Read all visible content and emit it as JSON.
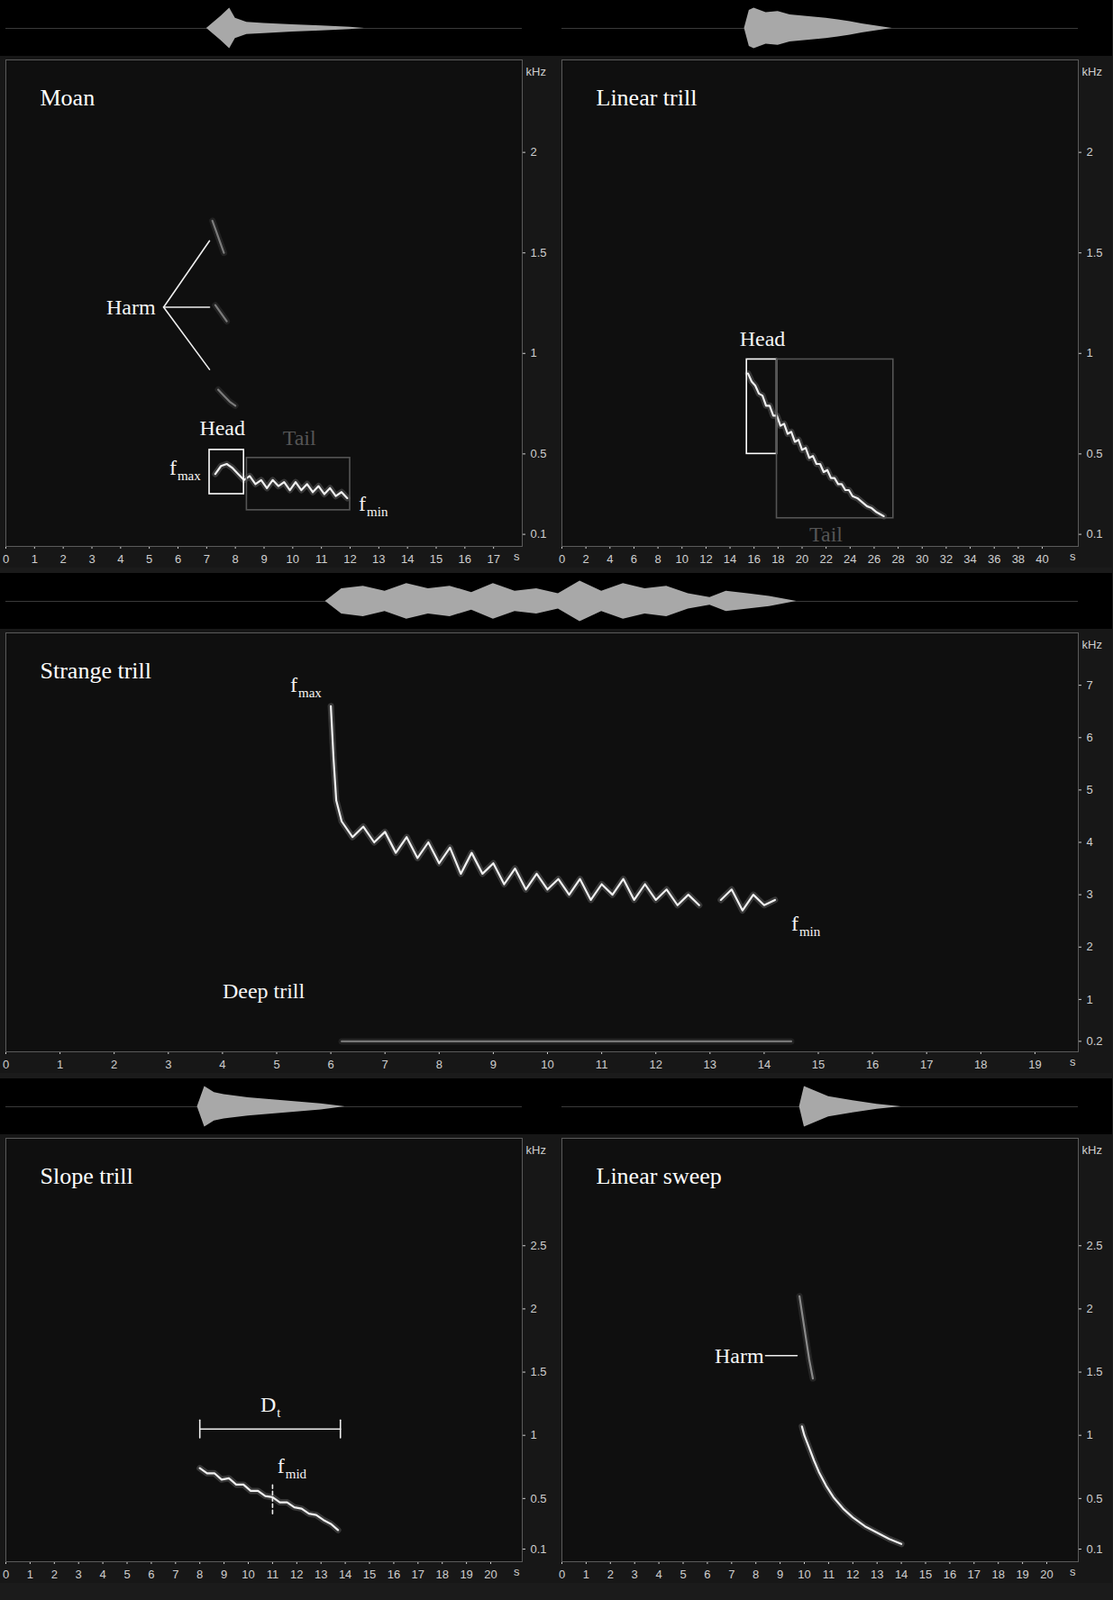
{
  "chart_data": [
    {
      "type": "line",
      "title": "Moan",
      "xlabel": "s",
      "ylabel": "kHz",
      "xlim": [
        0,
        18
      ],
      "xticks": [
        0,
        1,
        2,
        3,
        4,
        5,
        6,
        7,
        8,
        9,
        10,
        11,
        12,
        13,
        14,
        15,
        16,
        17
      ],
      "ylim": [
        0.04,
        2.46
      ],
      "yticks": [
        0.1,
        0.5,
        1,
        1.5,
        2
      ],
      "grid": false,
      "series": [
        {
          "color": "#f0f0f0",
          "x": [
            7.3,
            7.5,
            7.7,
            7.9,
            8.1,
            8.3,
            8.5,
            8.7,
            8.9,
            9.1,
            9.3,
            9.5,
            9.7,
            9.9,
            10.1,
            10.3,
            10.5,
            10.7,
            10.9,
            11.1,
            11.3,
            11.5,
            11.7,
            11.9
          ],
          "values": [
            0.4,
            0.44,
            0.45,
            0.43,
            0.4,
            0.37,
            0.39,
            0.35,
            0.37,
            0.33,
            0.37,
            0.34,
            0.36,
            0.32,
            0.36,
            0.32,
            0.35,
            0.31,
            0.34,
            0.3,
            0.33,
            0.29,
            0.31,
            0.28
          ]
        },
        {
          "color": "#7c7c7c",
          "x": [
            7.4,
            7.6,
            7.8,
            8.0
          ],
          "values": [
            0.82,
            0.79,
            0.76,
            0.74
          ]
        },
        {
          "color": "#7c7c7c",
          "x": [
            7.3,
            7.5,
            7.7
          ],
          "values": [
            1.24,
            1.2,
            1.16
          ]
        },
        {
          "color": "#7c7c7c",
          "x": [
            7.2,
            7.4,
            7.6
          ],
          "values": [
            1.66,
            1.58,
            1.5
          ]
        }
      ],
      "envelope": {
        "x": [
          7.0,
          7.5,
          7.8,
          8.0,
          8.4,
          9,
          10,
          11,
          12,
          12.5
        ],
        "values": [
          0,
          0.6,
          1.0,
          0.5,
          0.3,
          0.25,
          0.18,
          0.12,
          0.06,
          0
        ]
      },
      "boxes": [
        {
          "x": [
            7.1,
            8.3
          ],
          "y": [
            0.3,
            0.52
          ],
          "color": "#ffffff"
        },
        {
          "x": [
            8.4,
            12.0
          ],
          "y": [
            0.22,
            0.48
          ],
          "color": "#555555"
        }
      ],
      "leaders": [
        {
          "x": [
            5.5,
            7.1
          ],
          "y": [
            1.23,
            1.56
          ]
        },
        {
          "x": [
            5.5,
            7.1
          ],
          "y": [
            1.23,
            1.23
          ]
        },
        {
          "x": [
            5.5,
            7.1
          ],
          "y": [
            1.23,
            0.92
          ]
        }
      ],
      "annotations": [
        {
          "text": "Harm",
          "x": 3.5,
          "y": 1.23
        },
        {
          "text": "Head",
          "x": 6.75,
          "y": 0.63
        },
        {
          "text": "Tail",
          "x": 9.65,
          "y": 0.58,
          "color": "#555555"
        },
        {
          "text": "f",
          "sub": "max",
          "x": 5.7,
          "y": 0.43
        },
        {
          "text": "f",
          "sub": "min",
          "x": 12.3,
          "y": 0.25
        }
      ]
    },
    {
      "type": "line",
      "title": "Linear trill",
      "xlabel": "s",
      "ylabel": "kHz",
      "xlim": [
        0,
        43
      ],
      "xticks": [
        0,
        2,
        4,
        6,
        8,
        10,
        12,
        14,
        16,
        18,
        20,
        22,
        24,
        26,
        28,
        30,
        32,
        34,
        36,
        38,
        40
      ],
      "ylim": [
        0.04,
        2.46
      ],
      "yticks": [
        0.1,
        0.5,
        1,
        1.5,
        2
      ],
      "grid": false,
      "series": [
        {
          "color": "#f0f0f0",
          "x": [
            15.5,
            15.8,
            16.1,
            16.4,
            16.7,
            17.0,
            17.3,
            17.6,
            17.9,
            18.2,
            18.5,
            18.8,
            19.1,
            19.4,
            19.7,
            20.0,
            20.3,
            20.6,
            20.9,
            21.2,
            21.5,
            21.8,
            22.1,
            22.4,
            22.7,
            23.0,
            23.3,
            23.6,
            23.9,
            24.2,
            24.6,
            25.0,
            25.4,
            25.8,
            26.2,
            26.8
          ],
          "values": [
            0.9,
            0.86,
            0.84,
            0.8,
            0.79,
            0.74,
            0.74,
            0.69,
            0.69,
            0.64,
            0.65,
            0.6,
            0.61,
            0.56,
            0.57,
            0.52,
            0.53,
            0.48,
            0.49,
            0.45,
            0.45,
            0.41,
            0.42,
            0.38,
            0.38,
            0.35,
            0.35,
            0.32,
            0.32,
            0.29,
            0.28,
            0.26,
            0.24,
            0.23,
            0.21,
            0.19
          ]
        }
      ],
      "envelope": {
        "x": [
          15.2,
          15.6,
          16,
          17,
          18,
          19,
          20,
          21,
          22,
          23,
          24,
          25,
          26,
          27.5
        ],
        "values": [
          0,
          0.8,
          0.9,
          0.7,
          0.75,
          0.6,
          0.55,
          0.5,
          0.45,
          0.38,
          0.3,
          0.2,
          0.12,
          0
        ]
      },
      "boxes": [
        {
          "x": [
            15.4,
            17.9
          ],
          "y": [
            0.5,
            0.97
          ],
          "color": "#ffffff"
        },
        {
          "x": [
            17.9,
            27.6
          ],
          "y": [
            0.18,
            0.97
          ],
          "color": "#555555"
        }
      ],
      "leaders": [],
      "annotations": [
        {
          "text": "Head",
          "x": 14.8,
          "y": 1.07
        },
        {
          "text": "Tail",
          "x": 20.6,
          "y": 0.1,
          "color": "#555555"
        }
      ]
    },
    {
      "type": "line",
      "title": "Strange trill",
      "xlabel": "s",
      "ylabel": "kHz",
      "xlim": [
        0,
        19.8
      ],
      "xticks": [
        0,
        1,
        2,
        3,
        4,
        5,
        6,
        7,
        8,
        9,
        10,
        11,
        12,
        13,
        14,
        15,
        16,
        17,
        18,
        19
      ],
      "ylim": [
        0,
        8
      ],
      "yticks": [
        0.2,
        1,
        2,
        3,
        4,
        5,
        6,
        7
      ],
      "grid": false,
      "series": [
        {
          "color": "#f0f0f0",
          "x": [
            6.0,
            6.05,
            6.1,
            6.2,
            6.4,
            6.6,
            6.8,
            7.0,
            7.2,
            7.4,
            7.6,
            7.8,
            8.0,
            8.2,
            8.4,
            8.6,
            8.8,
            9.0,
            9.2,
            9.4,
            9.6,
            9.8,
            10.0,
            10.2,
            10.4,
            10.6,
            10.8,
            11.0,
            11.2,
            11.4,
            11.6,
            11.8,
            12.0,
            12.2,
            12.4,
            12.6,
            12.8,
            13.0,
            13.2,
            13.4,
            13.6,
            13.8,
            14.0,
            14.2
          ],
          "values": [
            6.6,
            5.6,
            4.8,
            4.4,
            4.1,
            4.3,
            4.0,
            4.2,
            3.8,
            4.1,
            3.7,
            4.0,
            3.6,
            3.9,
            3.4,
            3.8,
            3.4,
            3.6,
            3.2,
            3.5,
            3.1,
            3.4,
            3.1,
            3.3,
            3.0,
            3.3,
            2.9,
            3.2,
            3.0,
            3.3,
            2.9,
            3.2,
            2.9,
            3.1,
            2.8,
            3.0,
            2.8,
            null,
            2.9,
            3.1,
            2.7,
            3.0,
            2.8,
            2.9
          ]
        },
        {
          "color": "#777777",
          "x": [
            6.2,
            14.5
          ],
          "values": [
            0.2,
            0.2
          ]
        }
      ],
      "envelope": {
        "x": [
          5.9,
          6.2,
          6.6,
          7,
          7.4,
          7.8,
          8.2,
          8.6,
          9,
          9.4,
          9.8,
          10.2,
          10.6,
          11,
          11.4,
          11.8,
          12.2,
          12.6,
          13,
          13.3,
          13.7,
          14.1,
          14.6
        ],
        "values": [
          0,
          0.5,
          0.6,
          0.4,
          0.7,
          0.5,
          0.6,
          0.35,
          0.7,
          0.4,
          0.5,
          0.3,
          0.8,
          0.4,
          0.7,
          0.5,
          0.6,
          0.3,
          0.15,
          0.4,
          0.3,
          0.2,
          0
        ]
      },
      "boxes": [],
      "leaders": [],
      "annotations": [
        {
          "text": "f",
          "sub": "max",
          "x": 5.25,
          "y": 7.0
        },
        {
          "text": "f",
          "sub": "min",
          "x": 14.5,
          "y": 2.45
        },
        {
          "text": "Deep trill",
          "x": 4.0,
          "y": 1.15
        }
      ]
    },
    {
      "type": "line",
      "title": "Slope trill",
      "xlabel": "s",
      "ylabel": "kHz",
      "xlim": [
        0,
        21.3
      ],
      "xticks": [
        0,
        1,
        2,
        3,
        4,
        5,
        6,
        7,
        8,
        9,
        10,
        11,
        12,
        13,
        14,
        15,
        16,
        17,
        18,
        19,
        20
      ],
      "ylim": [
        0,
        3.35
      ],
      "yticks": [
        0.1,
        0.5,
        1,
        1.5,
        2,
        2.5
      ],
      "grid": false,
      "series": [
        {
          "color": "#f0f0f0",
          "x": [
            8.0,
            8.3,
            8.6,
            8.9,
            9.2,
            9.5,
            9.8,
            10.1,
            10.4,
            10.7,
            11.0,
            11.3,
            11.6,
            11.9,
            12.2,
            12.5,
            12.8,
            13.1,
            13.4,
            13.7
          ],
          "values": [
            0.74,
            0.7,
            0.7,
            0.65,
            0.66,
            0.61,
            0.61,
            0.56,
            0.56,
            0.52,
            0.51,
            0.47,
            0.47,
            0.43,
            0.42,
            0.38,
            0.37,
            0.33,
            0.3,
            0.25
          ]
        }
      ],
      "envelope": {
        "x": [
          7.9,
          8.2,
          8.6,
          9,
          10,
          11,
          12,
          13,
          14
        ],
        "values": [
          0,
          1.0,
          0.7,
          0.6,
          0.45,
          0.35,
          0.25,
          0.15,
          0
        ]
      },
      "boxes": [],
      "leaders": [
        {
          "x": [
            11,
            11
          ],
          "y": [
            0.38,
            0.62
          ],
          "line_style": "dashed"
        },
        {
          "x": [
            8,
            13.8
          ],
          "y": [
            1.05,
            1.05
          ]
        },
        {
          "x": [
            8,
            8
          ],
          "y": [
            0.98,
            1.12
          ]
        },
        {
          "x": [
            13.8,
            13.8
          ],
          "y": [
            0.98,
            1.12
          ]
        }
      ],
      "annotations": [
        {
          "text": "D",
          "sub": "t",
          "x": 10.5,
          "y": 1.24
        },
        {
          "text": "f",
          "sub": "mid",
          "x": 11.2,
          "y": 0.76
        }
      ]
    },
    {
      "type": "line",
      "title": "Linear sweep",
      "xlabel": "s",
      "ylabel": "kHz",
      "xlim": [
        0,
        21.3
      ],
      "xticks": [
        0,
        1,
        2,
        3,
        4,
        5,
        6,
        7,
        8,
        9,
        10,
        11,
        12,
        13,
        14,
        15,
        16,
        17,
        18,
        19,
        20
      ],
      "ylim": [
        0,
        3.35
      ],
      "yticks": [
        0.1,
        0.5,
        1,
        1.5,
        2,
        2.5
      ],
      "grid": false,
      "series": [
        {
          "color": "#f0f0f0",
          "x": [
            9.9,
            10.0,
            10.2,
            10.4,
            10.6,
            10.9,
            11.2,
            11.6,
            12.0,
            12.5,
            13.0,
            13.5,
            14.0
          ],
          "values": [
            1.07,
            1.0,
            0.9,
            0.8,
            0.71,
            0.6,
            0.51,
            0.42,
            0.35,
            0.28,
            0.23,
            0.18,
            0.14
          ]
        },
        {
          "color": "#8a8a8a",
          "x": [
            9.8,
            10.0,
            10.2,
            10.35
          ],
          "values": [
            2.1,
            1.85,
            1.6,
            1.45
          ]
        }
      ],
      "envelope": {
        "x": [
          9.8,
          10.0,
          10.4,
          11,
          12,
          13,
          14
        ],
        "values": [
          0,
          1.0,
          0.8,
          0.5,
          0.3,
          0.12,
          0
        ]
      },
      "boxes": [],
      "leaders": [
        {
          "x": [
            8.4,
            9.7
          ],
          "y": [
            1.63,
            1.63
          ]
        }
      ],
      "annotations": [
        {
          "text": "Harm",
          "x": 6.3,
          "y": 1.63
        }
      ]
    }
  ]
}
